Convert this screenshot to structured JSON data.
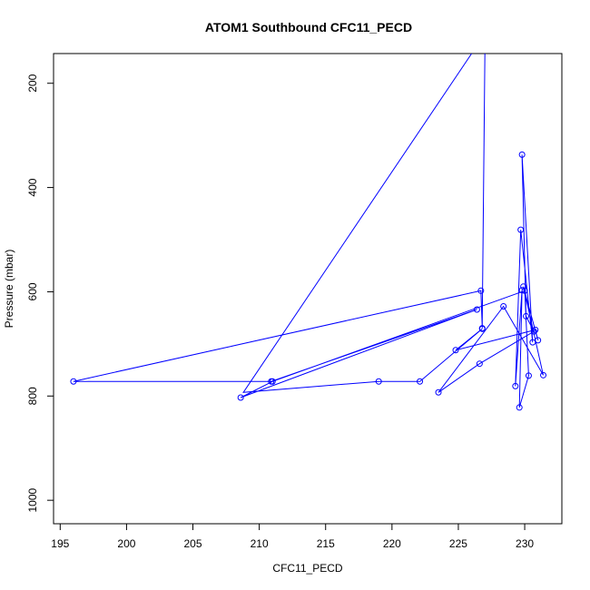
{
  "chart_data": {
    "type": "scatter",
    "title": "ATOM1 Southbound CFC11_PECD",
    "xlabel": "CFC11_PECD",
    "ylabel": "Pressure (mbar)",
    "xlim": [
      194.5,
      232.8
    ],
    "ylim": [
      1045,
      143
    ],
    "y_axis_reversed": true,
    "x_ticks": [
      195,
      200,
      205,
      210,
      215,
      220,
      225,
      230
    ],
    "x_tick_labels": [
      "195",
      "200",
      "205",
      "210",
      "215",
      "220",
      "225",
      "230"
    ],
    "y_ticks": [
      200,
      400,
      600,
      800,
      1000
    ],
    "y_tick_labels": [
      "200",
      "400",
      "600",
      "800",
      "1000"
    ],
    "series_color": "#0000ff",
    "line_only_before": [
      {
        "x": 227.0,
        "y": 143
      },
      {
        "x": 226.8,
        "y": 655
      }
    ],
    "points": [
      {
        "x": 226.8,
        "y": 670
      },
      {
        "x": 226.7,
        "y": 598
      },
      {
        "x": 196.0,
        "y": 772
      },
      {
        "x": 210.9,
        "y": 772
      },
      {
        "x": 226.4,
        "y": 634
      },
      {
        "x": 208.6,
        "y": 803
      },
      {
        "x": 211.0,
        "y": 772
      },
      {
        "x": 230.0,
        "y": 598
      },
      {
        "x": 230.3,
        "y": 761
      },
      {
        "x": 229.6,
        "y": 822
      },
      {
        "x": 229.8,
        "y": 597
      },
      {
        "x": 229.3,
        "y": 781
      },
      {
        "x": 229.7,
        "y": 481
      },
      {
        "x": 230.6,
        "y": 697
      },
      {
        "x": 229.8,
        "y": 337
      },
      {
        "x": 230.1,
        "y": 647
      },
      {
        "x": 230.7,
        "y": 676
      },
      {
        "x": 226.6,
        "y": 738
      },
      {
        "x": 223.5,
        "y": 793
      },
      {
        "x": 228.4,
        "y": 628
      },
      {
        "x": 231.4,
        "y": 760
      },
      {
        "x": 229.9,
        "y": 590
      },
      {
        "x": 231.0,
        "y": 693
      },
      {
        "x": 230.8,
        "y": 673
      },
      {
        "x": 224.8,
        "y": 712
      },
      {
        "x": 226.8,
        "y": 671
      },
      {
        "x": 222.1,
        "y": 772
      },
      {
        "x": 219.0,
        "y": 772
      }
    ],
    "line_only_after": [
      {
        "x": 208.8,
        "y": 793
      },
      {
        "x": 226.0,
        "y": 143
      }
    ]
  }
}
